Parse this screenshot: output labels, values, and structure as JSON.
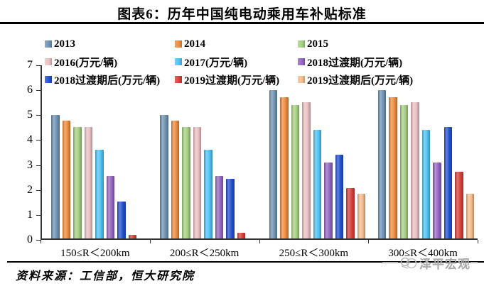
{
  "title": "图表6：历年中国纯电动乘用车补贴标准",
  "source_note": "资料来源：工信部，恒大研究院",
  "watermark": "泽平宏观",
  "chart_data": {
    "type": "bar",
    "title": "图表6：历年中国纯电动乘用车补贴标准",
    "categories": [
      "150≤R＜200km",
      "200≤R＜250km",
      "250≤R＜300km",
      "300≤R＜400km"
    ],
    "series": [
      {
        "name": "2013",
        "color": "#6E93B3",
        "values": [
          5.0,
          5.0,
          6.0,
          6.0
        ]
      },
      {
        "name": "2014",
        "color": "#EE8C3E",
        "values": [
          4.75,
          4.75,
          5.7,
          5.7
        ]
      },
      {
        "name": "2015",
        "color": "#A5D183",
        "values": [
          4.5,
          4.5,
          5.4,
          5.4
        ]
      },
      {
        "name": "2016(万元/辆)",
        "color": "#EBC0C3",
        "values": [
          4.5,
          4.5,
          5.5,
          5.5
        ]
      },
      {
        "name": "2017(万元/辆)",
        "color": "#4FC4F5",
        "values": [
          3.6,
          3.6,
          4.4,
          4.4
        ]
      },
      {
        "name": "2018过渡期(万元/辆)",
        "color": "#9566C2",
        "values": [
          2.52,
          2.52,
          3.08,
          3.08
        ]
      },
      {
        "name": "2018过渡期后(万元/辆)",
        "color": "#2450CE",
        "values": [
          1.5,
          2.4,
          3.4,
          4.5
        ]
      },
      {
        "name": "2019过渡期(万元/辆)",
        "color": "#D8403A",
        "values": [
          0.15,
          0.24,
          2.04,
          2.7
        ]
      },
      {
        "name": "2019过渡期后(万元/辆)",
        "color": "#F6BD8B",
        "values": [
          0,
          0,
          1.8,
          1.8
        ]
      }
    ],
    "ylabel": "",
    "xlabel": "",
    "ylim": [
      0,
      7
    ],
    "y_ticks": [
      0,
      1,
      2,
      3,
      4,
      5,
      6,
      7
    ],
    "grid": false,
    "legend_position": "top"
  }
}
